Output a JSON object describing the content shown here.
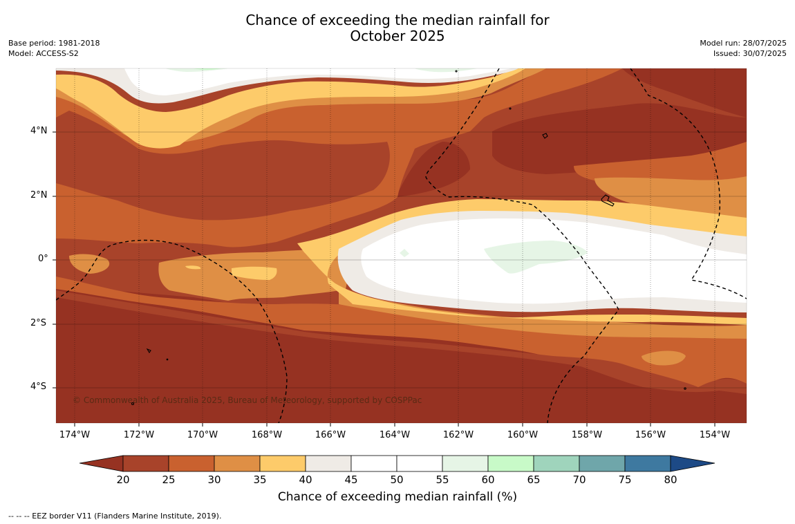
{
  "title_line1": "Chance of exceeding the median rainfall for",
  "title_line2": "October 2025",
  "base_period": "Base period: 1981-2018",
  "model": "Model: ACCESS-S2",
  "model_run": "Model run: 28/07/2025",
  "issued": "Issued: 30/07/2025",
  "copyright": "© Commonwealth of Australia 2025, Bureau of Meteorology, supported by COSPPac",
  "lat_labels": [
    "4°N",
    "2°N",
    "0°",
    "2°S",
    "4°S"
  ],
  "lon_labels": [
    "174°W",
    "172°W",
    "170°W",
    "168°W",
    "166°W",
    "164°W",
    "162°W",
    "160°W",
    "158°W",
    "156°W",
    "154°W"
  ],
  "colorbar": {
    "ticks": [
      "20",
      "25",
      "30",
      "35",
      "40",
      "45",
      "50",
      "55",
      "60",
      "65",
      "70",
      "75",
      "80"
    ],
    "colors": [
      "#a8432a",
      "#c9612f",
      "#df8f45",
      "#fdcb6a",
      "#efebe6",
      "#ffffff",
      "#ffffff",
      "#e6f5e6",
      "#c8fac8",
      "#9fd4bc",
      "#6fa6aa",
      "#3e79a0"
    ],
    "under_color": "#963222",
    "over_color": "#1d4a86",
    "label": "Chance of exceeding median rainfall (%)"
  },
  "footer": "--  --  -- EEZ border V11 (Flanders Marine Institute, 2019)."
}
